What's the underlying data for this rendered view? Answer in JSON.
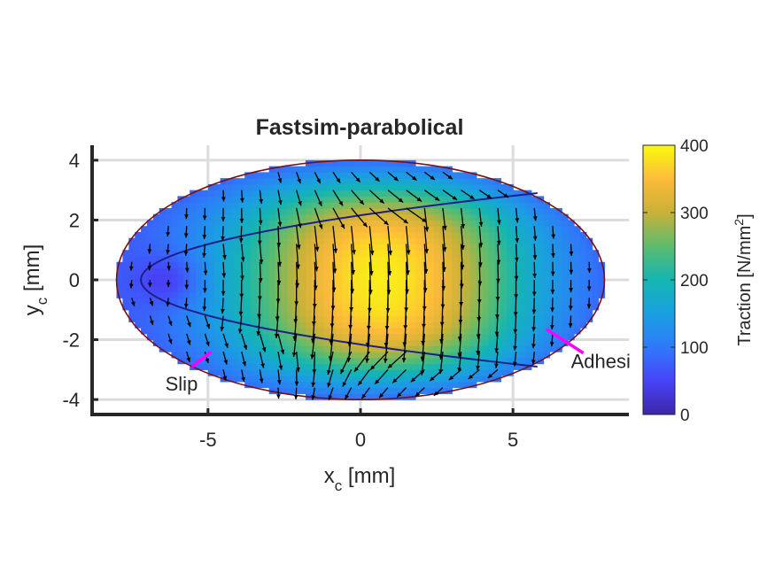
{
  "chart_data": {
    "type": "heatmap",
    "title": "Fastsim-parabolical",
    "xlabel": {
      "main": "x",
      "sub": "c",
      "unit": " [mm]"
    },
    "ylabel": {
      "main": "y",
      "sub": "c",
      "unit": " [mm]"
    },
    "xlim": [
      -8.8,
      8.8
    ],
    "ylim": [
      -4.5,
      4.5
    ],
    "xticks": [
      -5,
      0,
      5
    ],
    "xtick_labels": [
      "-5",
      "0",
      "5"
    ],
    "yticks": [
      -4,
      -2,
      0,
      2,
      4
    ],
    "ytick_labels": [
      "-4",
      "-2",
      "0",
      "2",
      "4"
    ],
    "grid": true,
    "contact_ellipse": {
      "a": 8,
      "b": 4
    },
    "slip_adhesion_boundary": {
      "vertex_x": -7.2,
      "end_x": 5.8,
      "end_y": 2.9
    },
    "traction_peak": {
      "x": 0.8,
      "y": 0
    },
    "colorbar": {
      "label": "Traction [N/mm",
      "label_superscript": "2",
      "label_suffix": "]",
      "range": [
        0,
        400
      ],
      "ticks": [
        0,
        100,
        200,
        300,
        400
      ],
      "tick_labels": [
        "0",
        "100",
        "200",
        "300",
        "400"
      ],
      "colormap": "parula"
    },
    "annotations": [
      {
        "text": "Slip",
        "point": [
          -4.9,
          -2.4
        ],
        "text_pos": [
          -6.4,
          -3.7
        ]
      },
      {
        "text": "Adhesi",
        "point": [
          6.1,
          -1.65
        ],
        "text_pos": [
          6.9,
          -2.95
        ]
      }
    ],
    "colors": {
      "boundary_line": "#1f1f8c",
      "ellipse_edge": "#7a1010",
      "annotation_line": "#ff00ff",
      "arrow": "#000000"
    }
  }
}
